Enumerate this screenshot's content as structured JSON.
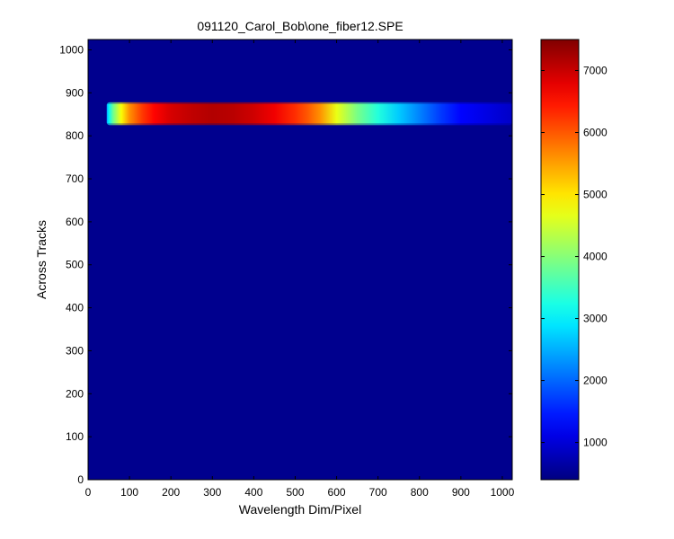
{
  "chart_data": {
    "type": "heatmap",
    "title": "091120_Carol_Bob\\one_fiber12.SPE",
    "xlabel": "Wavelength Dim/Pixel",
    "ylabel": "Across Tracks",
    "xlim": [
      0,
      1024
    ],
    "ylim": [
      0,
      1024
    ],
    "x_ticks": [
      "0",
      "100",
      "200",
      "300",
      "400",
      "500",
      "600",
      "700",
      "800",
      "900",
      "1000"
    ],
    "y_ticks": [
      "0",
      "100",
      "200",
      "300",
      "400",
      "500",
      "600",
      "700",
      "800",
      "900",
      "1000"
    ],
    "colorbar": {
      "colormap": "jet",
      "range": [
        400,
        7500
      ],
      "ticks": [
        "1000",
        "2000",
        "3000",
        "4000",
        "5000",
        "6000",
        "7000"
      ]
    },
    "background_value": 500,
    "band": {
      "y_range": [
        825,
        878
      ],
      "x_start": 45,
      "profile": {
        "x": [
          45,
          50,
          60,
          80,
          100,
          130,
          160,
          200,
          250,
          300,
          350,
          400,
          450,
          500,
          530,
          560,
          600,
          650,
          700,
          750,
          800,
          850,
          900,
          1024
        ],
        "value": [
          2400,
          3000,
          3800,
          4800,
          5600,
          6200,
          6600,
          6900,
          7050,
          7150,
          7100,
          6950,
          6700,
          6300,
          6000,
          5600,
          4700,
          3900,
          3300,
          2700,
          2200,
          1700,
          1300,
          900
        ]
      }
    }
  }
}
